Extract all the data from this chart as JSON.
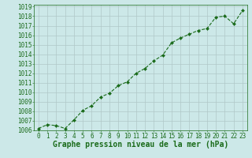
{
  "x": [
    0,
    1,
    2,
    3,
    4,
    5,
    6,
    7,
    8,
    9,
    10,
    11,
    12,
    13,
    14,
    15,
    16,
    17,
    18,
    19,
    20,
    21,
    22,
    23
  ],
  "y": [
    1006.2,
    1006.6,
    1006.5,
    1006.2,
    1007.1,
    1008.1,
    1008.6,
    1009.5,
    1009.9,
    1010.7,
    1011.1,
    1012.0,
    1012.5,
    1013.3,
    1013.9,
    1015.2,
    1015.7,
    1016.1,
    1016.5,
    1016.7,
    1017.9,
    1018.0,
    1017.2,
    1018.6
  ],
  "ylim": [
    1006,
    1019
  ],
  "xlim": [
    -0.5,
    23.5
  ],
  "yticks": [
    1006,
    1007,
    1008,
    1009,
    1010,
    1011,
    1012,
    1013,
    1014,
    1015,
    1016,
    1017,
    1018,
    1019
  ],
  "xticks": [
    0,
    1,
    2,
    3,
    4,
    5,
    6,
    7,
    8,
    9,
    10,
    11,
    12,
    13,
    14,
    15,
    16,
    17,
    18,
    19,
    20,
    21,
    22,
    23
  ],
  "line_color": "#1a6b1a",
  "marker_color": "#1a6b1a",
  "bg_color": "#cce8e8",
  "grid_color": "#b0c8c8",
  "xlabel": "Graphe pression niveau de la mer (hPa)",
  "xlabel_color": "#1a6b1a",
  "tick_color": "#1a6b1a",
  "label_fontsize": 5.5,
  "xlabel_fontsize": 7.0
}
